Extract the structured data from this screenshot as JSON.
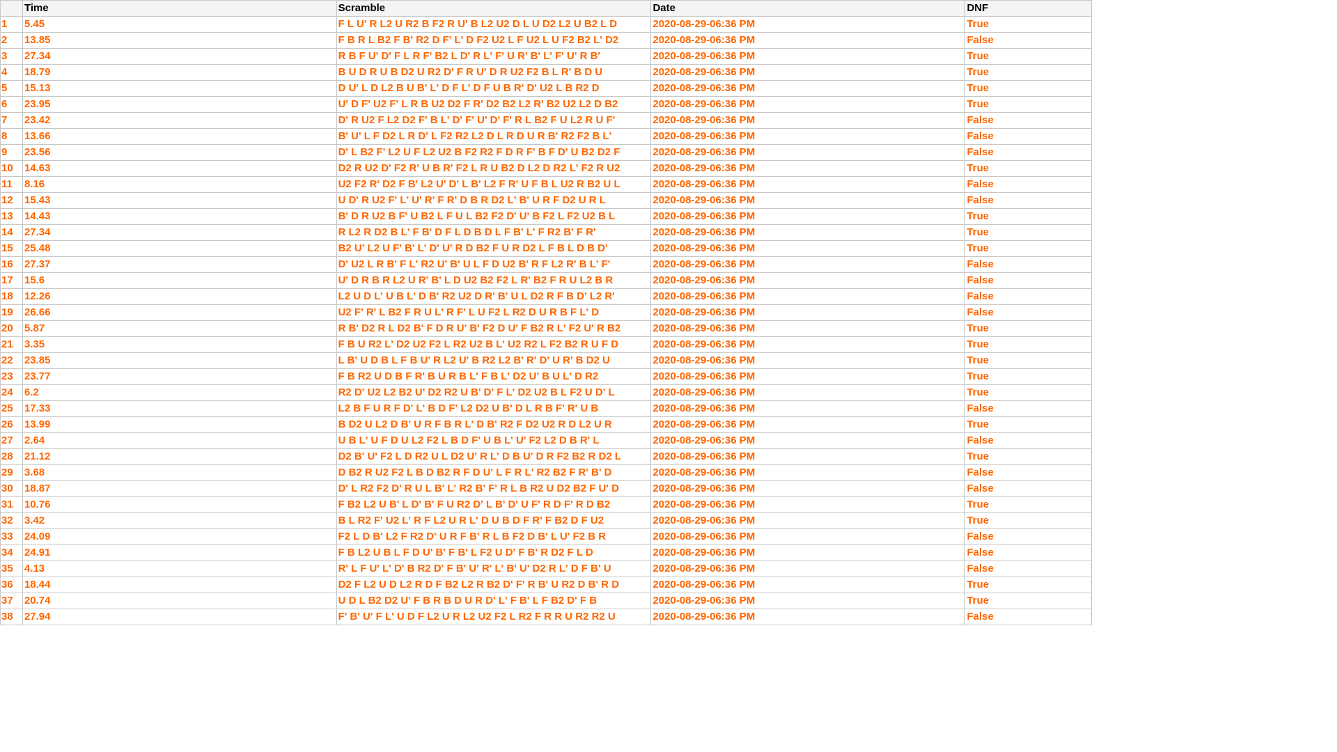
{
  "table": {
    "columns": [
      "Time",
      "Scramble",
      "Date",
      "DNF"
    ],
    "rows": [
      {
        "idx": "1",
        "time": "5.45",
        "scramble": "F L U' R L2 U R2 B F2 R U' B L2 U2 D L U D2 L2 U B2 L D",
        "date": "2020-08-29-06:36 PM",
        "dnf": "True"
      },
      {
        "idx": "2",
        "time": "13.85",
        "scramble": "F B R L B2 F B' R2 D F' L' D F2 U2 L F U2 L U F2 B2 L' D2",
        "date": "2020-08-29-06:36 PM",
        "dnf": "False"
      },
      {
        "idx": "3",
        "time": "27.34",
        "scramble": "R B F U' D' F L R F' B2 L D' R L' F' U R' B' L' F' U' R B'",
        "date": "2020-08-29-06:36 PM",
        "dnf": "True"
      },
      {
        "idx": "4",
        "time": "18.79",
        "scramble": "B U D R U B D2 U R2 D' F R U' D R U2 F2 B L R' B D U",
        "date": "2020-08-29-06:36 PM",
        "dnf": "True"
      },
      {
        "idx": "5",
        "time": "15.13",
        "scramble": "D U' L D L2 B U B' L' D F L' D F U B R' D' U2 L B R2 D",
        "date": "2020-08-29-06:36 PM",
        "dnf": "True"
      },
      {
        "idx": "6",
        "time": "23.95",
        "scramble": "U' D F' U2 F' L R B U2 D2 F R' D2 B2 L2 R' B2 U2 L2 D B2",
        "date": "2020-08-29-06:36 PM",
        "dnf": "True"
      },
      {
        "idx": "7",
        "time": "23.42",
        "scramble": "D' R U2 F L2 D2 F' B L' D' F' U' D' F' R L B2 F U L2 R U F'",
        "date": "2020-08-29-06:36 PM",
        "dnf": "False"
      },
      {
        "idx": "8",
        "time": "13.66",
        "scramble": "B' U' L F D2 L R D' L F2 R2 L2 D L R D U R B' R2 F2 B L'",
        "date": "2020-08-29-06:36 PM",
        "dnf": "False"
      },
      {
        "idx": "9",
        "time": "23.56",
        "scramble": "D' L B2 F' L2 U F L2 U2 B F2 R2 F D R F' B F D' U B2 D2 F",
        "date": "2020-08-29-06:36 PM",
        "dnf": "False"
      },
      {
        "idx": "10",
        "time": "14.63",
        "scramble": "D2 R U2 D' F2 R' U B R' F2 L R U B2 D L2 D R2 L' F2 R U2",
        "date": "2020-08-29-06:36 PM",
        "dnf": "True"
      },
      {
        "idx": "11",
        "time": "8.16",
        "scramble": "U2 F2 R' D2 F B' L2 U' D' L B' L2 F R' U F B L U2 R B2 U L",
        "date": "2020-08-29-06:36 PM",
        "dnf": "False"
      },
      {
        "idx": "12",
        "time": "15.43",
        "scramble": "U D' R U2 F' L' U' R' F R' D B R D2 L' B' U R F D2 U R L",
        "date": "2020-08-29-06:36 PM",
        "dnf": "False"
      },
      {
        "idx": "13",
        "time": "14.43",
        "scramble": "B' D R U2 B F' U B2 L F U L B2 F2 D' U' B F2 L F2 U2 B L",
        "date": "2020-08-29-06:36 PM",
        "dnf": "True"
      },
      {
        "idx": "14",
        "time": "27.34",
        "scramble": "R L2 R D2 B L' F B' D F L D B D L F B' L' F R2 B' F R'",
        "date": "2020-08-29-06:36 PM",
        "dnf": "True"
      },
      {
        "idx": "15",
        "time": "25.48",
        "scramble": "B2 U' L2 U F' B' L' D' U' R D B2 F U R D2 L F B L D B D'",
        "date": "2020-08-29-06:36 PM",
        "dnf": "True"
      },
      {
        "idx": "16",
        "time": "27.37",
        "scramble": "D' U2 L R B' F L' R2 U' B' U L F D U2 B' R F L2 R' B L' F'",
        "date": "2020-08-29-06:36 PM",
        "dnf": "False"
      },
      {
        "idx": "17",
        "time": "15.6",
        "scramble": "U' D R B R L2 U R' B' L D U2 B2 F2 L R' B2 F R U L2 B R",
        "date": "2020-08-29-06:36 PM",
        "dnf": "False"
      },
      {
        "idx": "18",
        "time": "12.26",
        "scramble": "L2 U D L' U B L' D B' R2 U2 D R' B' U L D2 R F B D' L2 R'",
        "date": "2020-08-29-06:36 PM",
        "dnf": "False"
      },
      {
        "idx": "19",
        "time": "26.66",
        "scramble": "U2 F' R' L B2 F R U L' R F' L U F2 L R2 D U R B F L' D",
        "date": "2020-08-29-06:36 PM",
        "dnf": "False"
      },
      {
        "idx": "20",
        "time": "5.87",
        "scramble": "R B' D2 R L D2 B' F D R U' B' F2 D U' F B2 R L' F2 U' R B2",
        "date": "2020-08-29-06:36 PM",
        "dnf": "True"
      },
      {
        "idx": "21",
        "time": "3.35",
        "scramble": "F B U R2 L' D2 U2 F2 L R2 U2 B L' U2 R2 L F2 B2 R U F D",
        "date": "2020-08-29-06:36 PM",
        "dnf": "True"
      },
      {
        "idx": "22",
        "time": "23.85",
        "scramble": "L B' U D B L F B U' R L2 U' B R2 L2 B' R' D' U R' B D2 U",
        "date": "2020-08-29-06:36 PM",
        "dnf": "True"
      },
      {
        "idx": "23",
        "time": "23.77",
        "scramble": "F B R2 U D B F R' B U R B L' F B L' D2 U' B U L' D R2",
        "date": "2020-08-29-06:36 PM",
        "dnf": "True"
      },
      {
        "idx": "24",
        "time": "6.2",
        "scramble": "R2 D' U2 L2 B2 U' D2 R2 U B' D' F L' D2 U2 B L F2 U D' L",
        "date": "2020-08-29-06:36 PM",
        "dnf": "True"
      },
      {
        "idx": "25",
        "time": "17.33",
        "scramble": "L2 B F U R F D' L' B D F' L2 D2 U B' D L R B F' R' U B",
        "date": "2020-08-29-06:36 PM",
        "dnf": "False"
      },
      {
        "idx": "26",
        "time": "13.99",
        "scramble": "B D2 U L2 D B' U R F B R L' D B' R2 F D2 U2 R D L2 U R",
        "date": "2020-08-29-06:36 PM",
        "dnf": "True"
      },
      {
        "idx": "27",
        "time": "2.64",
        "scramble": "U B L' U F D U L2 F2 L B D F' U B L' U' F2 L2 D B R' L",
        "date": "2020-08-29-06:36 PM",
        "dnf": "False"
      },
      {
        "idx": "28",
        "time": "21.12",
        "scramble": "D2 B' U' F2 L D R2 U L D2 U' R L' D B U' D R F2 B2 R D2 L",
        "date": "2020-08-29-06:36 PM",
        "dnf": "True"
      },
      {
        "idx": "29",
        "time": "3.68",
        "scramble": "D B2 R U2 F2 L B D B2 R F D U' L F R L' R2 B2 F R' B' D",
        "date": "2020-08-29-06:36 PM",
        "dnf": "False"
      },
      {
        "idx": "30",
        "time": "18.87",
        "scramble": "D' L R2 F2 D' R U L B' L' R2 B' F' R L B R2 U D2 B2 F U' D",
        "date": "2020-08-29-06:36 PM",
        "dnf": "False"
      },
      {
        "idx": "31",
        "time": "10.76",
        "scramble": "F B2 L2 U B' L D' B' F U R2 D' L B' D' U F' R D F' R D B2",
        "date": "2020-08-29-06:36 PM",
        "dnf": "True"
      },
      {
        "idx": "32",
        "time": "3.42",
        "scramble": "B L R2 F' U2 L' R F L2 U R L' D U B D F R' F B2 D F U2",
        "date": "2020-08-29-06:36 PM",
        "dnf": "True"
      },
      {
        "idx": "33",
        "time": "24.09",
        "scramble": "F2 L D B' L2 F R2 D' U R F B' R L B F2 D B' L U' F2 B R",
        "date": "2020-08-29-06:36 PM",
        "dnf": "False"
      },
      {
        "idx": "34",
        "time": "24.91",
        "scramble": "F B L2 U B L F D U' B' F B' L F2 U D' F B' R D2 F L D",
        "date": "2020-08-29-06:36 PM",
        "dnf": "False"
      },
      {
        "idx": "35",
        "time": "4.13",
        "scramble": "R' L F U' L' D' B R2 D' F B' U' R' L' B' U' D2 R L' D F B' U",
        "date": "2020-08-29-06:36 PM",
        "dnf": "False"
      },
      {
        "idx": "36",
        "time": "18.44",
        "scramble": "D2 F L2 U D L2 R D F B2 L2 R B2 D' F' R B' U R2 D B' R D",
        "date": "2020-08-29-06:36 PM",
        "dnf": "True"
      },
      {
        "idx": "37",
        "time": "20.74",
        "scramble": "U D L B2 D2 U' F B R B D U R D' L' F B' L F B2 D' F B",
        "date": "2020-08-29-06:36 PM",
        "dnf": "True"
      },
      {
        "idx": "38",
        "time": "27.94",
        "scramble": "F' B' U' F L' U D F L2 U R L2 U2 F2 L R2 F R R U R2 R2 U",
        "date": "2020-08-29-06:36 PM",
        "dnf": "False"
      }
    ]
  }
}
